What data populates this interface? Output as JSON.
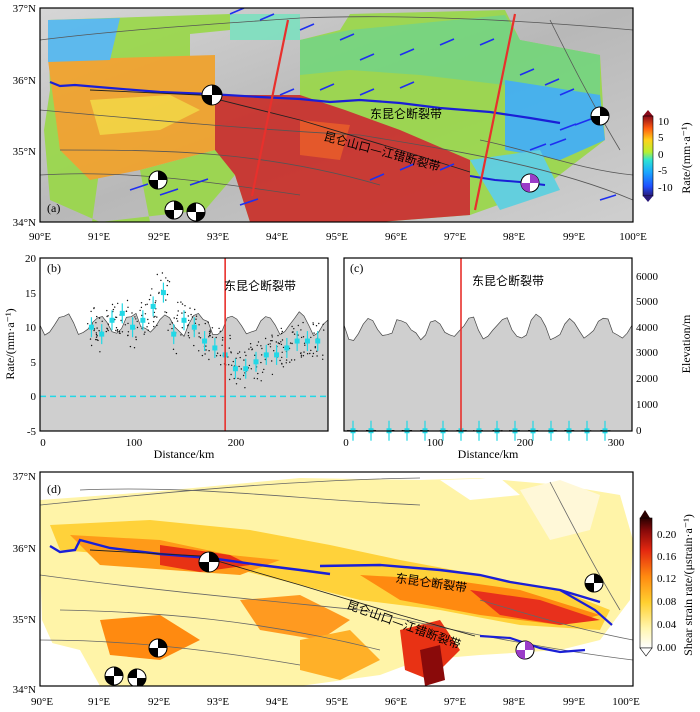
{
  "panel_a": {
    "label": "(a)",
    "lat_ticks": [
      "37°N",
      "36°N",
      "35°N",
      "34°N"
    ],
    "lon_ticks": [
      "90°E",
      "91°E",
      "92°E",
      "93°E",
      "94°E",
      "95°E",
      "96°E",
      "97°E",
      "98°E",
      "99°E",
      "100°E"
    ],
    "fault1": "东昆仑断裂带",
    "fault2": "昆仑山口—江错断裂带",
    "colorbar": {
      "label": "Rate/(mm·a⁻¹)",
      "ticks": [
        "10",
        "5",
        "0",
        "-5",
        "-10"
      ],
      "range": [
        -12,
        12
      ]
    }
  },
  "panel_b": {
    "label": "(b)",
    "fault": "东昆仑断裂带",
    "ylabel": "Rate/(mm·a⁻¹)",
    "xlabel": "Distance/km",
    "yticks": [
      "20",
      "15",
      "10",
      "5",
      "0",
      "-5"
    ],
    "xticks": [
      "0",
      "100",
      "200"
    ]
  },
  "panel_c": {
    "label": "(c)",
    "fault": "东昆仑断裂带",
    "xlabel": "Distance/km",
    "ylabel_right": "Elevation/m",
    "xticks": [
      "0",
      "100",
      "200",
      "300"
    ],
    "yticks_right": [
      "6000",
      "5000",
      "4000",
      "3000",
      "2000",
      "1000",
      "0"
    ]
  },
  "panel_d": {
    "label": "(d)",
    "lat_ticks": [
      "37°N",
      "36°N",
      "35°N",
      "34°N"
    ],
    "lon_ticks": [
      "90°E",
      "91°E",
      "92°E",
      "93°E",
      "94°E",
      "95°E",
      "96°E",
      "97°E",
      "98°E",
      "99°E",
      "100°E"
    ],
    "fault1": "东昆仑断裂带",
    "fault2": "昆仑山口—江错断裂带",
    "colorbar": {
      "label": "Shear strain rate/(μstrain·a⁻¹)",
      "ticks": [
        "0.20",
        "0.16",
        "0.12",
        "0.08",
        "0.04",
        "0.00"
      ],
      "range": [
        0,
        0.22
      ]
    }
  },
  "colors": {
    "fault": "#1a1fd6",
    "profile": "#e8302c",
    "profile_data": "#22d8e6",
    "terrain": "#cfcfcf"
  },
  "chart_data": [
    {
      "type": "line",
      "title": "",
      "xlabel": "Distance/km",
      "ylabel": "Rate/(mm·a⁻¹)",
      "xlim": [
        0,
        280
      ],
      "ylim": [
        -5,
        20
      ],
      "fault_location_km": 180,
      "series": [
        {
          "x": [
            50,
            60,
            70,
            80,
            90,
            100,
            110,
            120,
            130,
            140,
            150,
            160,
            170,
            180,
            190,
            200,
            210,
            220,
            230,
            240,
            250,
            260,
            270
          ],
          "values": [
            10,
            9,
            11,
            12,
            10,
            11,
            13,
            15,
            9,
            11,
            10,
            8,
            7,
            6,
            4,
            4,
            5,
            6,
            6,
            7,
            8,
            8,
            8
          ]
        }
      ]
    },
    {
      "type": "line",
      "title": "",
      "xlabel": "Distance/km",
      "ylabel": "Elevation/m",
      "xlim": [
        0,
        320
      ],
      "ylim": [
        0,
        6500
      ],
      "fault_location_km": 130,
      "series": [
        {
          "x": [
            10,
            30,
            50,
            70,
            90,
            110,
            130,
            150,
            170,
            190,
            210,
            230,
            250,
            270,
            290
          ],
          "values": [
            10,
            11,
            10,
            10,
            10,
            9,
            8,
            8,
            7,
            7,
            7,
            8,
            8,
            7,
            7
          ]
        }
      ]
    }
  ]
}
